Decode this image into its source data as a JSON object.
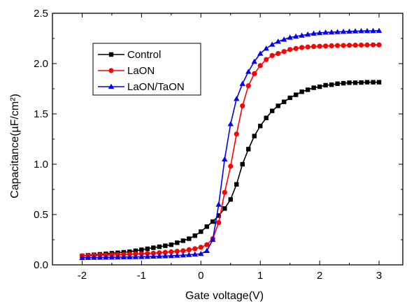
{
  "chart_data": {
    "type": "line",
    "xlabel": "Gate voltage(V)",
    "ylabel": "Capacitance(µF/cm²)",
    "xlim": [
      -2.5,
      3.4
    ],
    "ylim": [
      0,
      2.5
    ],
    "xticks": [
      -2,
      -1,
      0,
      1,
      2,
      3
    ],
    "yticks": [
      0.0,
      0.5,
      1.0,
      1.5,
      2.0,
      2.5
    ],
    "xtick_labels": [
      "-2",
      "-1",
      "0",
      "1",
      "2",
      "3"
    ],
    "ytick_labels": [
      "0.0",
      "0.5",
      "1.0",
      "1.5",
      "2.0",
      "2.5"
    ],
    "legend_position": "top-left",
    "grid": false,
    "series": [
      {
        "name": "Control",
        "color": "#000000",
        "marker": "square",
        "x": [
          -2.0,
          -1.9,
          -1.8,
          -1.7,
          -1.6,
          -1.5,
          -1.4,
          -1.3,
          -1.2,
          -1.1,
          -1.0,
          -0.9,
          -0.8,
          -0.7,
          -0.6,
          -0.5,
          -0.4,
          -0.3,
          -0.2,
          -0.1,
          0.0,
          0.1,
          0.2,
          0.3,
          0.4,
          0.5,
          0.6,
          0.7,
          0.8,
          0.9,
          1.0,
          1.1,
          1.2,
          1.3,
          1.4,
          1.5,
          1.6,
          1.7,
          1.8,
          1.9,
          2.0,
          2.1,
          2.2,
          2.3,
          2.4,
          2.5,
          2.6,
          2.7,
          2.8,
          2.9,
          3.0
        ],
        "y": [
          0.09,
          0.095,
          0.1,
          0.105,
          0.11,
          0.115,
          0.12,
          0.125,
          0.13,
          0.14,
          0.15,
          0.16,
          0.17,
          0.18,
          0.19,
          0.2,
          0.22,
          0.24,
          0.26,
          0.29,
          0.33,
          0.38,
          0.43,
          0.49,
          0.56,
          0.65,
          0.8,
          1.0,
          1.15,
          1.28,
          1.38,
          1.46,
          1.53,
          1.58,
          1.62,
          1.66,
          1.69,
          1.72,
          1.74,
          1.76,
          1.77,
          1.785,
          1.79,
          1.8,
          1.805,
          1.81,
          1.81,
          1.812,
          1.815,
          1.815,
          1.815
        ]
      },
      {
        "name": "LaON",
        "color": "#ff0000",
        "marker": "circle",
        "x": [
          -2.0,
          -1.9,
          -1.8,
          -1.7,
          -1.6,
          -1.5,
          -1.4,
          -1.3,
          -1.2,
          -1.1,
          -1.0,
          -0.9,
          -0.8,
          -0.7,
          -0.6,
          -0.5,
          -0.4,
          -0.3,
          -0.2,
          -0.1,
          0.0,
          0.1,
          0.2,
          0.3,
          0.4,
          0.5,
          0.6,
          0.7,
          0.8,
          0.9,
          1.0,
          1.1,
          1.2,
          1.3,
          1.4,
          1.5,
          1.6,
          1.7,
          1.8,
          1.9,
          2.0,
          2.1,
          2.2,
          2.3,
          2.4,
          2.5,
          2.6,
          2.7,
          2.8,
          2.9,
          3.0
        ],
        "y": [
          0.09,
          0.092,
          0.094,
          0.096,
          0.098,
          0.1,
          0.102,
          0.104,
          0.106,
          0.108,
          0.11,
          0.113,
          0.116,
          0.12,
          0.124,
          0.13,
          0.135,
          0.14,
          0.15,
          0.16,
          0.175,
          0.2,
          0.26,
          0.42,
          0.72,
          0.98,
          1.3,
          1.58,
          1.78,
          1.9,
          1.98,
          2.04,
          2.08,
          2.1,
          2.12,
          2.14,
          2.15,
          2.16,
          2.165,
          2.17,
          2.172,
          2.175,
          2.177,
          2.179,
          2.18,
          2.182,
          2.183,
          2.184,
          2.185,
          2.186,
          2.186
        ]
      },
      {
        "name": "LaON/TaON",
        "color": "#0000ff",
        "marker": "triangle",
        "x": [
          -2.0,
          -1.9,
          -1.8,
          -1.7,
          -1.6,
          -1.5,
          -1.4,
          -1.3,
          -1.2,
          -1.1,
          -1.0,
          -0.9,
          -0.8,
          -0.7,
          -0.6,
          -0.5,
          -0.4,
          -0.3,
          -0.2,
          -0.1,
          0.0,
          0.1,
          0.2,
          0.3,
          0.4,
          0.5,
          0.6,
          0.7,
          0.8,
          0.9,
          1.0,
          1.1,
          1.2,
          1.3,
          1.4,
          1.5,
          1.6,
          1.7,
          1.8,
          1.9,
          2.0,
          2.1,
          2.2,
          2.3,
          2.4,
          2.5,
          2.6,
          2.7,
          2.8,
          2.9,
          3.0
        ],
        "y": [
          0.07,
          0.071,
          0.072,
          0.073,
          0.074,
          0.075,
          0.076,
          0.077,
          0.078,
          0.079,
          0.08,
          0.082,
          0.084,
          0.086,
          0.088,
          0.09,
          0.093,
          0.096,
          0.1,
          0.105,
          0.11,
          0.14,
          0.25,
          0.6,
          1.05,
          1.4,
          1.65,
          1.8,
          1.92,
          2.02,
          2.1,
          2.15,
          2.19,
          2.22,
          2.24,
          2.26,
          2.27,
          2.28,
          2.29,
          2.3,
          2.305,
          2.31,
          2.312,
          2.315,
          2.318,
          2.32,
          2.322,
          2.324,
          2.325,
          2.326,
          2.327
        ]
      }
    ]
  }
}
